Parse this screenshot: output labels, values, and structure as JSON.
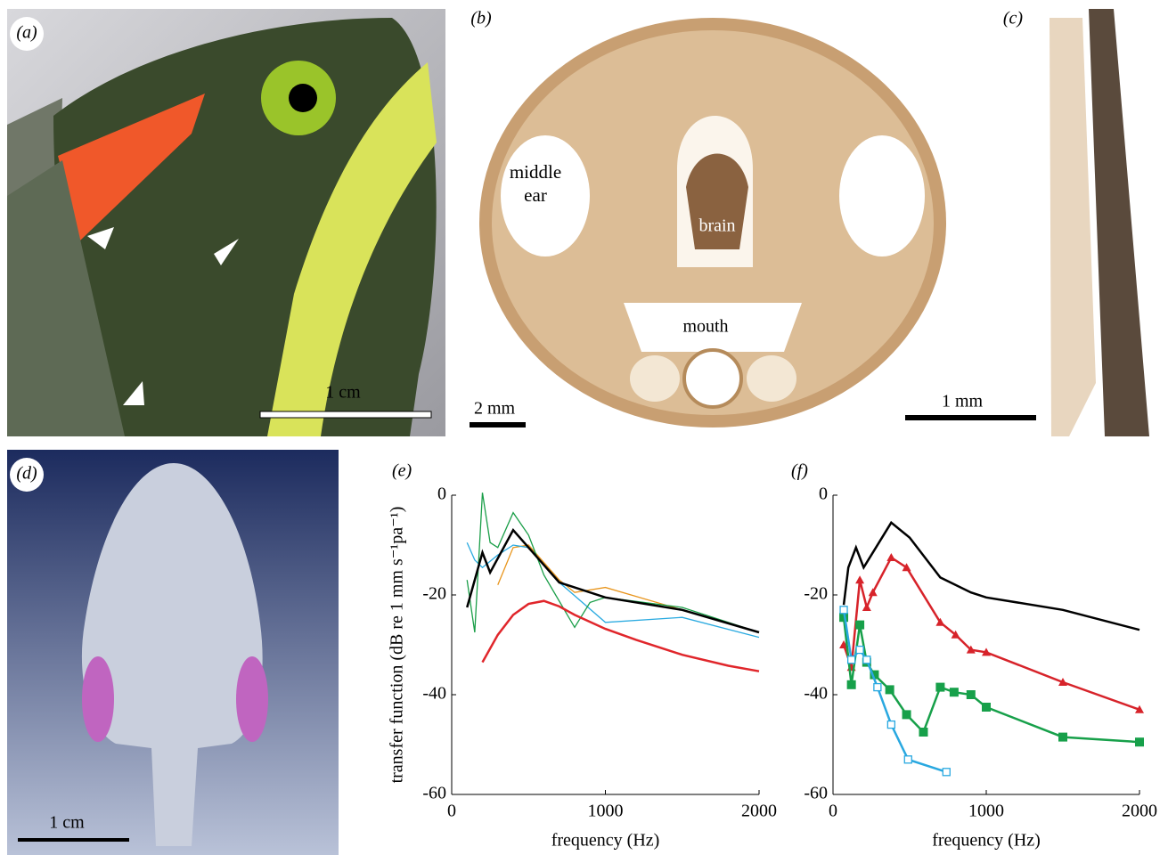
{
  "panels": {
    "a": {
      "label": "(a)",
      "scale": "1 cm"
    },
    "b": {
      "label": "(b)",
      "scale": "2 mm",
      "annotations": [
        "middle ear",
        "brain",
        "mouth"
      ]
    },
    "c": {
      "label": "(c)",
      "scale": "1 mm"
    },
    "d": {
      "label": "(d)",
      "scale": "1 cm"
    }
  },
  "chart_data": [
    {
      "type": "line",
      "title": "(e)",
      "x_label": "frequency (Hz)",
      "y_label": "transfer function (dB re 1 mm s⁻¹pa⁻¹)",
      "xlim": [
        0,
        2000
      ],
      "xticks": [
        0,
        1000,
        2000
      ],
      "ylim": [
        -60,
        0
      ],
      "yticks": [
        0,
        -20,
        -40,
        -60
      ],
      "series": [
        {
          "color": "#e8951c",
          "x": [
            300,
            400,
            500,
            700,
            800,
            1000,
            1500,
            2000
          ],
          "values": [
            -18,
            -10.5,
            -10,
            -17,
            -19.5,
            -18.5,
            -23,
            -27.5
          ]
        },
        {
          "color": "#2aaae0",
          "x": [
            100,
            150,
            200,
            300,
            400,
            500,
            700,
            1000,
            1500,
            2000
          ],
          "values": [
            -9.5,
            -13,
            -14.5,
            -12,
            -10,
            -10.5,
            -17.5,
            -25.5,
            -24.5,
            -28.5
          ]
        },
        {
          "color": "#1a9e48",
          "x": [
            100,
            150,
            200,
            250,
            300,
            400,
            500,
            600,
            800,
            900,
            1000,
            1500,
            2000
          ],
          "values": [
            -17,
            -27.5,
            0.5,
            -9.5,
            -10.5,
            -3.5,
            -8,
            -16,
            -26.5,
            -21.5,
            -20.5,
            -22.5,
            -27.5
          ]
        },
        {
          "color": "#e0262b",
          "x": [
            200,
            300,
            400,
            500,
            600,
            700,
            800,
            1000,
            1200,
            1500,
            1800,
            2000
          ],
          "values": [
            -33.5,
            -28,
            -24,
            -21.8,
            -21.2,
            -22.3,
            -24,
            -26.8,
            -29,
            -32,
            -34.2,
            -35.3
          ]
        },
        {
          "color": "#000000",
          "x": [
            100,
            200,
            250,
            400,
            700,
            1000,
            1500,
            2000
          ],
          "values": [
            -22.5,
            -11.5,
            -15.5,
            -7,
            -17.5,
            -20.5,
            -23,
            -27.5
          ]
        }
      ]
    },
    {
      "type": "line",
      "title": "(f)",
      "x_label": "frequency (Hz)",
      "xlim": [
        0,
        2000
      ],
      "xticks": [
        0,
        1000,
        2000
      ],
      "ylim": [
        -60,
        0
      ],
      "yticks": [
        0,
        -20,
        -40,
        -60
      ],
      "series": [
        {
          "color": "#000000",
          "x": [
            70,
            100,
            150,
            200,
            250,
            380,
            500,
            700,
            900,
            1000,
            1500,
            2000
          ],
          "values": [
            -22,
            -14.5,
            -10.5,
            -14.5,
            -12,
            -5.5,
            -8.5,
            -16.5,
            -19.5,
            -20.5,
            -23,
            -27
          ]
        },
        {
          "color": "#d7232a",
          "marker": "triangle",
          "x": [
            70,
            120,
            175,
            220,
            260,
            380,
            480,
            700,
            800,
            900,
            1000,
            1500,
            2000
          ],
          "values": [
            -30,
            -34.5,
            -17,
            -22.5,
            -19.5,
            -12.5,
            -14.5,
            -25.5,
            -28,
            -31,
            -31.5,
            -37.5,
            -43
          ]
        },
        {
          "color": "#17a04a",
          "marker": "square",
          "x": [
            70,
            120,
            175,
            220,
            270,
            370,
            480,
            590,
            700,
            790,
            900,
            1000,
            1500,
            2000
          ],
          "values": [
            -24.5,
            -38,
            -26,
            -33.5,
            -36,
            -39,
            -44,
            -47.5,
            -38.5,
            -39.5,
            -40,
            -42.5,
            -48.5,
            -49.5
          ]
        },
        {
          "color": "#29a8e0",
          "marker": "open-square",
          "x": [
            70,
            120,
            175,
            220,
            290,
            380,
            490,
            740
          ],
          "values": [
            -23,
            -33,
            -31,
            -33,
            -38.5,
            -46,
            -53,
            -55.5
          ]
        }
      ]
    }
  ]
}
